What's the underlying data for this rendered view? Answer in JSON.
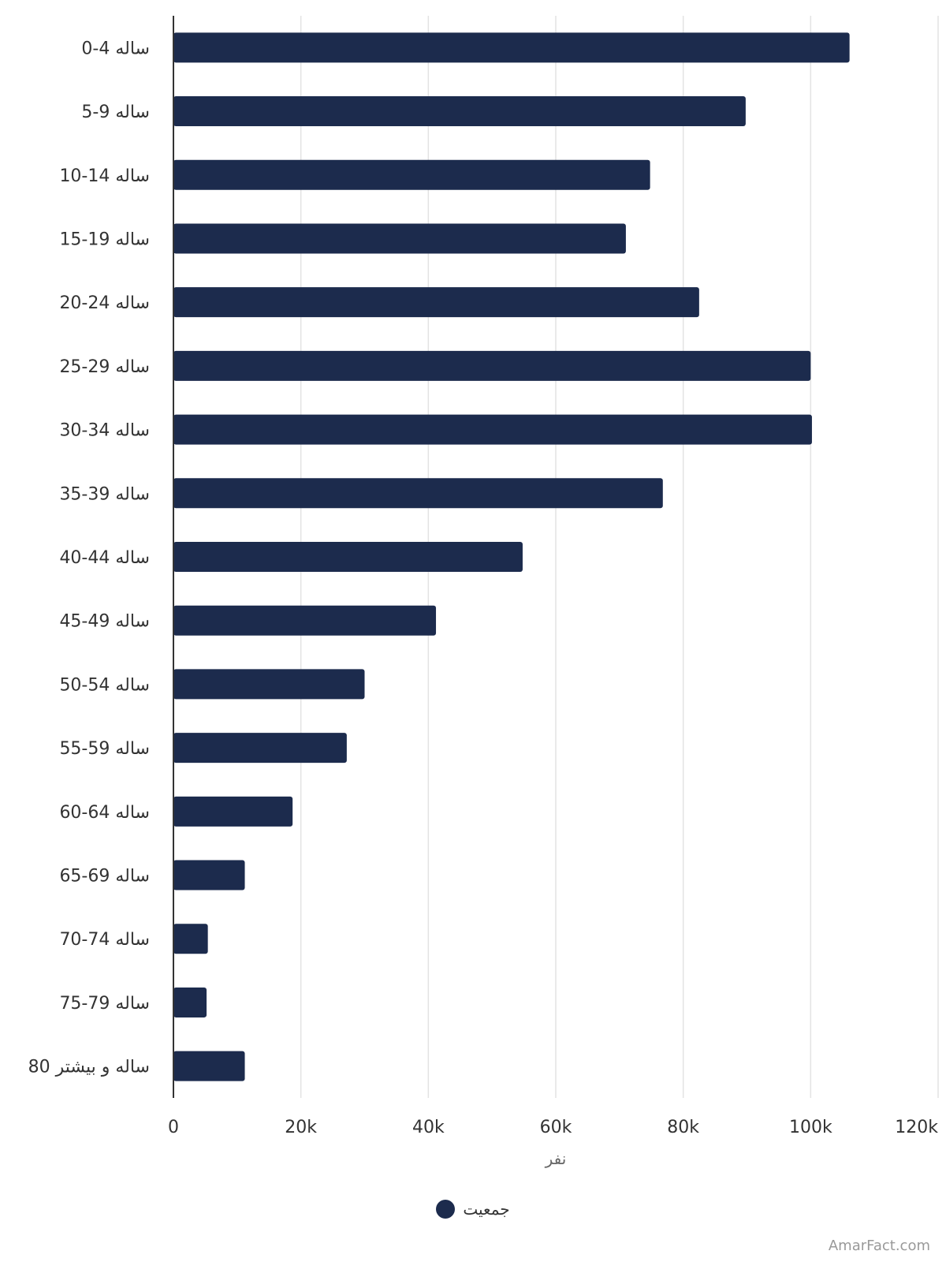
{
  "chart_data": {
    "type": "bar",
    "orientation": "horizontal",
    "categories": [
      "0-4 ساله",
      "5-9 ساله",
      "10-14 ساله",
      "15-19 ساله",
      "20-24 ساله",
      "25-29 ساله",
      "30-34 ساله",
      "35-39 ساله",
      "40-44 ساله",
      "45-49 ساله",
      "50-54 ساله",
      "55-59 ساله",
      "60-64 ساله",
      "65-69 ساله",
      "70-74 ساله",
      "75-79 ساله",
      "80 ساله و بیشتر"
    ],
    "series": [
      {
        "name": "جمعیت",
        "color": "#1c2b4d",
        "values": [
          106100,
          89800,
          74800,
          71000,
          82500,
          100000,
          100200,
          76800,
          54800,
          41200,
          30000,
          27200,
          18700,
          11200,
          5400,
          5200,
          11200
        ]
      }
    ],
    "xlabel": "نفر",
    "xlim": [
      0,
      120000
    ],
    "xticks": [
      0,
      20000,
      40000,
      60000,
      80000,
      100000,
      120000
    ],
    "xtick_labels": [
      "0",
      "20k",
      "40k",
      "60k",
      "80k",
      "100k",
      "120k"
    ],
    "grid": true,
    "legend_position": "bottom-center"
  },
  "watermark": "AmarFact.com"
}
